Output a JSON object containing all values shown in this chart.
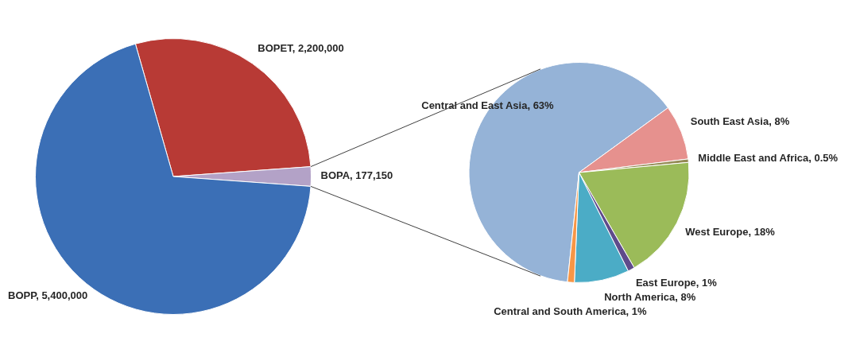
{
  "chart_data": [
    {
      "type": "pie",
      "categories": [
        "BOPET",
        "BOPA",
        "BOPP"
      ],
      "values": [
        2200000,
        177150,
        5400000
      ],
      "value_labels": [
        "2,200,000",
        "177,150",
        "5,400,000"
      ],
      "colors": [
        "#b83a35",
        "#b3a2c7",
        "#3b6fb6"
      ]
    },
    {
      "type": "pie",
      "categories": [
        "Central and East Asia",
        "South East Asia",
        "Middle East and Africa",
        "West Europe",
        "East Europe",
        "North America",
        "Central and South America"
      ],
      "values": [
        63,
        8,
        0.5,
        18,
        1,
        8,
        1
      ],
      "value_labels": [
        "63%",
        "8%",
        "0.5%",
        "18%",
        "1%",
        "8%",
        "1%"
      ],
      "colors": [
        "#95b3d7",
        "#e6918e",
        "#948a54",
        "#9bbb59",
        "#5f4b8b",
        "#4bacc6",
        "#f79646"
      ]
    }
  ]
}
